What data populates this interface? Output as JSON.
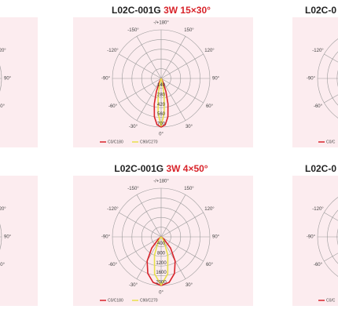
{
  "chart_data": [
    {
      "type": "polar",
      "title": "L02C-001G",
      "subtitle": "3W 15×30°",
      "rlim": [
        0,
        700
      ],
      "rticks": [
        140,
        280,
        420,
        560,
        700
      ],
      "thetaticks": [
        {
          "value": -150,
          "label": "-150°"
        },
        {
          "value": 180,
          "label": "-/+180°"
        },
        {
          "value": 150,
          "label": "150°"
        },
        {
          "value": -120,
          "label": "-120°"
        },
        {
          "value": 120,
          "label": "120°"
        },
        {
          "value": -90,
          "label": "-90°"
        },
        {
          "value": 90,
          "label": "90°"
        },
        {
          "value": -60,
          "label": "-60°"
        },
        {
          "value": 60,
          "label": "60°"
        },
        {
          "value": -30,
          "label": "-30°"
        },
        {
          "value": 0,
          "label": "0°"
        },
        {
          "value": 30,
          "label": "30°"
        }
      ],
      "series": [
        {
          "name": "C0/C180",
          "color": "#d8232a",
          "theta": [
            -40,
            -30,
            -20,
            -15,
            -10,
            -5,
            0,
            5,
            10,
            15,
            20,
            30,
            40
          ],
          "values": [
            0,
            40,
            200,
            380,
            560,
            670,
            700,
            670,
            560,
            380,
            200,
            40,
            0
          ]
        },
        {
          "name": "C90/C270",
          "color": "#e8e04a",
          "theta": [
            -40,
            -30,
            -20,
            -15,
            -10,
            -5,
            0,
            5,
            10,
            15,
            20,
            30,
            40
          ],
          "values": [
            0,
            0,
            20,
            80,
            250,
            500,
            690,
            500,
            250,
            80,
            20,
            0,
            0
          ]
        }
      ]
    },
    {
      "type": "polar",
      "title": "L02C-001G",
      "subtitle": "3W 4×50°",
      "rlim": [
        0,
        2000
      ],
      "rticks": [
        400,
        800,
        1200,
        1600,
        2000
      ],
      "thetaticks": [
        {
          "value": -150,
          "label": "-150°"
        },
        {
          "value": 180,
          "label": "-/+180°"
        },
        {
          "value": 150,
          "label": "150°"
        },
        {
          "value": -120,
          "label": "-120°"
        },
        {
          "value": 120,
          "label": "120°"
        },
        {
          "value": -90,
          "label": "-90°"
        },
        {
          "value": 90,
          "label": "90°"
        },
        {
          "value": -60,
          "label": "-60°"
        },
        {
          "value": 60,
          "label": "60°"
        },
        {
          "value": -30,
          "label": "-30°"
        },
        {
          "value": 0,
          "label": "0°"
        },
        {
          "value": 30,
          "label": "30°"
        }
      ],
      "series": [
        {
          "name": "C0/C180",
          "color": "#d8232a",
          "theta": [
            -60,
            -50,
            -40,
            -30,
            -20,
            -10,
            0,
            10,
            20,
            30,
            40,
            50,
            60
          ],
          "values": [
            0,
            150,
            600,
            1150,
            1600,
            1900,
            2000,
            1900,
            1600,
            1150,
            600,
            150,
            0
          ]
        },
        {
          "name": "C90/C270",
          "color": "#e8e04a",
          "theta": [
            -60,
            -50,
            -40,
            -30,
            -20,
            -10,
            0,
            10,
            20,
            30,
            40,
            50,
            60
          ],
          "values": [
            0,
            0,
            60,
            250,
            800,
            1550,
            1980,
            1550,
            800,
            250,
            60,
            0,
            0
          ]
        }
      ]
    }
  ],
  "side_panels": [
    {
      "labels": [
        "120°",
        "90°",
        "60°"
      ]
    },
    {
      "labels": [
        "120°",
        "90°",
        "60°"
      ]
    },
    {
      "title": "L02C-0",
      "labels": [
        "-120°",
        "-90°",
        "-60°"
      ],
      "legend": "C0/C"
    },
    {
      "title": "L02C-0",
      "labels": [
        "-120°",
        "-90°",
        "-60°"
      ],
      "legend": "C0/C"
    }
  ]
}
